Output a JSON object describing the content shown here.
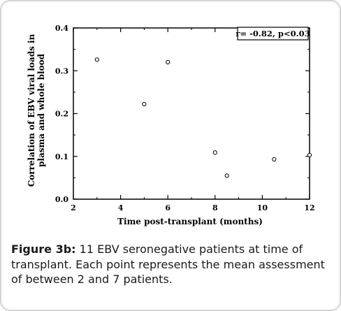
{
  "chart_data": {
    "type": "scatter",
    "xlabel": "Time post-transplant (months)",
    "ylabel_line1": "Correlation of EBV viral loads in",
    "ylabel_line2": "plasma and whole blood",
    "xlim": [
      2,
      12
    ],
    "ylim": [
      0.0,
      0.4
    ],
    "x_ticks": [
      "2",
      "4",
      "6",
      "8",
      "10",
      "12"
    ],
    "y_ticks": [
      "0.0",
      "0.1",
      "0.2",
      "0.3",
      "0.4"
    ],
    "annotation": "r= -0.82, p<0.03",
    "grid": false,
    "points": [
      {
        "x": 3.0,
        "y": 0.326
      },
      {
        "x": 5.0,
        "y": 0.222
      },
      {
        "x": 6.0,
        "y": 0.32
      },
      {
        "x": 8.0,
        "y": 0.109
      },
      {
        "x": 8.5,
        "y": 0.055
      },
      {
        "x": 10.5,
        "y": 0.093
      },
      {
        "x": 12.0,
        "y": 0.103
      }
    ]
  },
  "caption": {
    "label": "Figure 3b:",
    "text": " 11 EBV seronegative patients at time of transplant. Each point represents the mean assessment of between 2 and 7 patients."
  }
}
